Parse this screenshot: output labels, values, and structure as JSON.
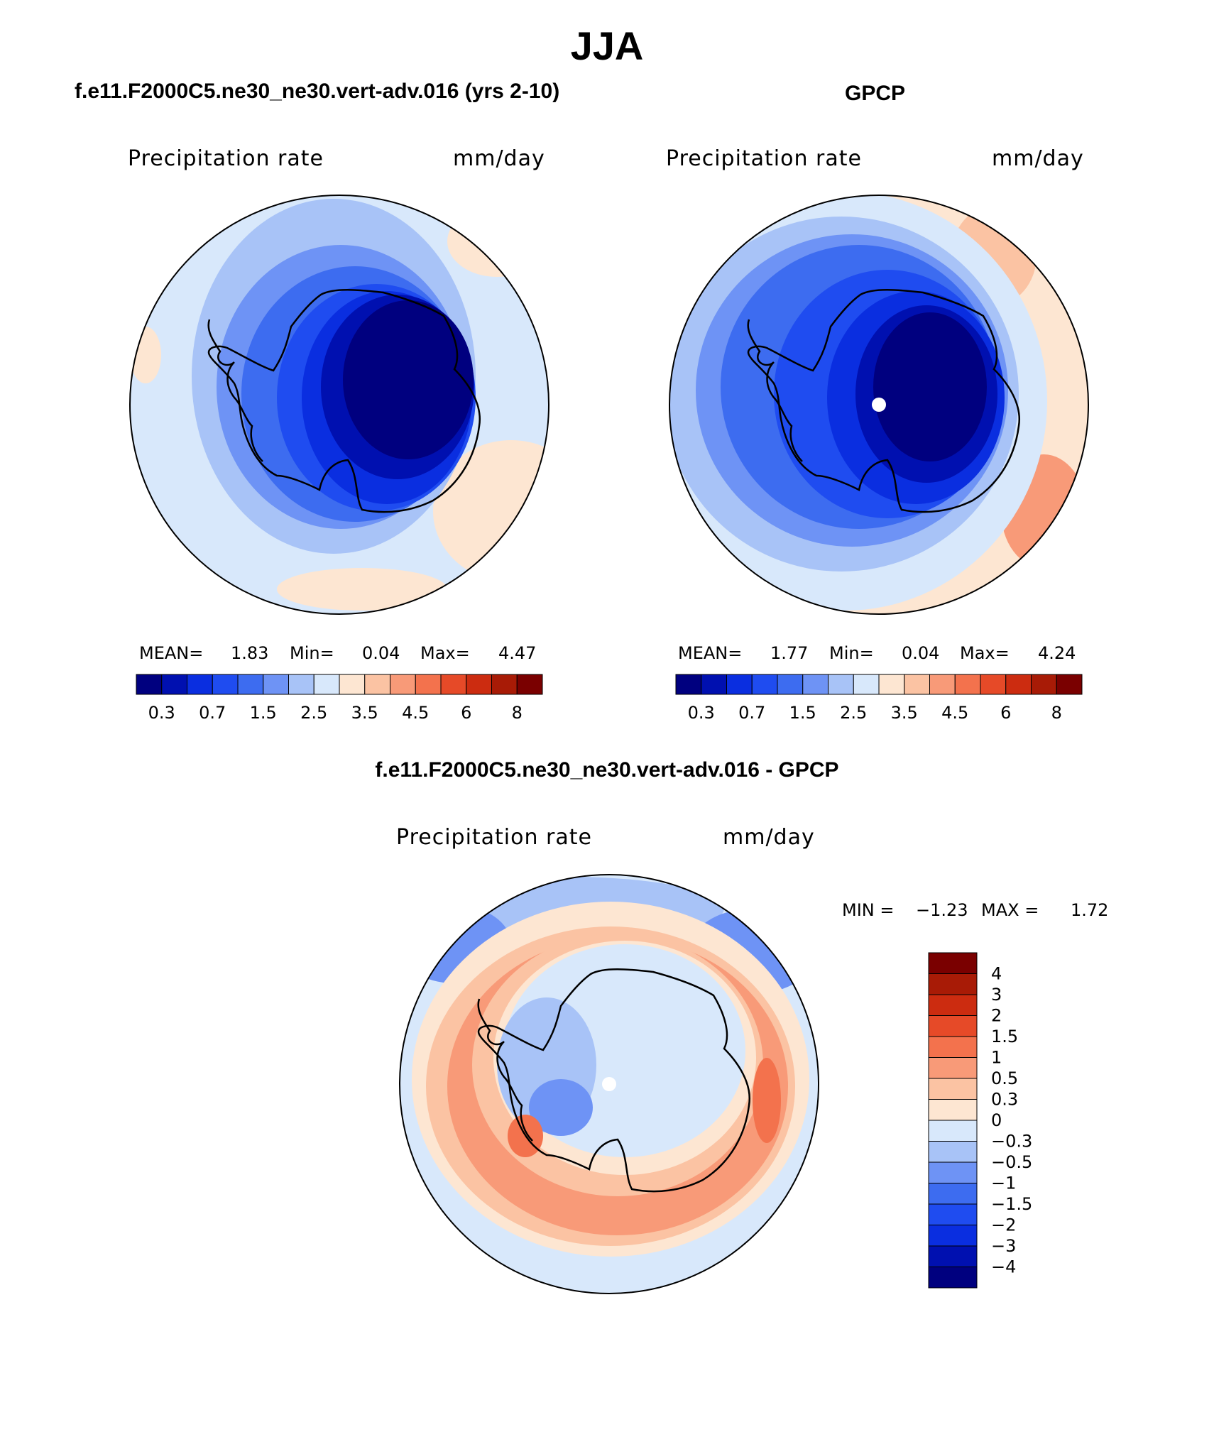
{
  "title": "JJA",
  "chart_data": [
    {
      "type": "heatmap",
      "projection": "south-polar-stereographic",
      "title": "f.e11.F2000C5.ne30_ne30.vert-adv.016 (yrs 2-10)",
      "variable": "Precipitation rate",
      "units": "mm/day",
      "stats": {
        "mean_label": "MEAN=",
        "mean": "1.83",
        "min_label": "Min=",
        "min": "0.04",
        "max_label": "Max=",
        "max": "4.47"
      },
      "colorbar": {
        "levels": [
          "0.3",
          "0.7",
          "1.5",
          "2.5",
          "3.5",
          "4.5",
          "6",
          "8"
        ],
        "colors": [
          "#00007f",
          "#0010b0",
          "#0a2ee0",
          "#1f4cf0",
          "#3d6cf0",
          "#6e93f5",
          "#a8c3f7",
          "#d8e8fb",
          "#fde6d2",
          "#fbc3a3",
          "#f89a78",
          "#f3724d",
          "#e64a28",
          "#cc2c10",
          "#a81b06",
          "#7a0000"
        ]
      }
    },
    {
      "type": "heatmap",
      "projection": "south-polar-stereographic",
      "title": "GPCP",
      "variable": "Precipitation rate",
      "units": "mm/day",
      "stats": {
        "mean_label": "MEAN=",
        "mean": "1.77",
        "min_label": "Min=",
        "min": "0.04",
        "max_label": "Max=",
        "max": "4.24"
      },
      "colorbar": {
        "levels": [
          "0.3",
          "0.7",
          "1.5",
          "2.5",
          "3.5",
          "4.5",
          "6",
          "8"
        ],
        "colors": [
          "#00007f",
          "#0010b0",
          "#0a2ee0",
          "#1f4cf0",
          "#3d6cf0",
          "#6e93f5",
          "#a8c3f7",
          "#d8e8fb",
          "#fde6d2",
          "#fbc3a3",
          "#f89a78",
          "#f3724d",
          "#e64a28",
          "#cc2c10",
          "#a81b06",
          "#7a0000"
        ]
      }
    },
    {
      "type": "heatmap",
      "projection": "south-polar-stereographic",
      "title": "f.e11.F2000C5.ne30_ne30.vert-adv.016 - GPCP",
      "variable": "Precipitation rate",
      "units": "mm/day",
      "stats": {
        "min_label": "MIN =",
        "min": "−1.23",
        "max_label": "MAX =",
        "max": "1.72"
      },
      "colorbar": {
        "levels": [
          "4",
          "3",
          "2",
          "1.5",
          "1",
          "0.5",
          "0.3",
          "0",
          "−0.3",
          "−0.5",
          "−1",
          "−1.5",
          "−2",
          "−3",
          "−4"
        ],
        "colors": [
          "#7a0000",
          "#a81b06",
          "#cc2c10",
          "#e64a28",
          "#f3724d",
          "#f89a78",
          "#fbc3a3",
          "#fde6d2",
          "#d8e8fb",
          "#a8c3f7",
          "#6e93f5",
          "#3d6cf0",
          "#1f4cf0",
          "#0a2ee0",
          "#0010b0",
          "#00007f"
        ]
      }
    }
  ]
}
